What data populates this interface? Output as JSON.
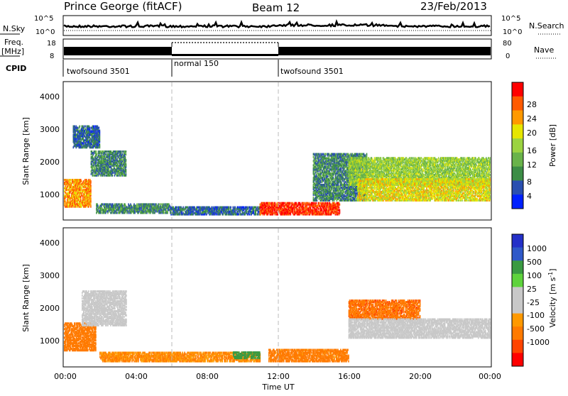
{
  "header": {
    "station": "Prince George (fitACF)",
    "beam": "Beam 12",
    "date": "23/Feb/2013"
  },
  "strips": {
    "nsky_label": "N.Sky",
    "nsky_ticks": [
      "10^5",
      "10^0"
    ],
    "nsearch_label": "N.Search",
    "nsearch_ticks": [
      "10^5",
      "10^0"
    ],
    "freq_label": "Freq.",
    "freq_unit": "[MHz]",
    "freq_ticks": [
      "18",
      "8"
    ],
    "nave_label": "Nave",
    "nave_ticks": [
      "80",
      "0"
    ],
    "cpid_label": "CPID",
    "cpid_segments": [
      {
        "name": "twofsound 3501",
        "start_hour": 0,
        "end_hour": 6
      },
      {
        "name": "normal 150",
        "start_hour": 6,
        "end_hour": 12
      },
      {
        "name": "twofsound 3501",
        "start_hour": 12,
        "end_hour": 24
      }
    ]
  },
  "power_panel": {
    "ylabel": "Slant Range [km]",
    "yticks": [
      "4000",
      "3000",
      "2000",
      "1000"
    ],
    "colorbar_label": "Power [dB]",
    "colorbar_ticks": [
      "28",
      "24",
      "20",
      "16",
      "12",
      "8",
      "4"
    ],
    "colors": [
      "#0020ff",
      "#2a4fb0",
      "#3c8d46",
      "#69b34a",
      "#9bd341",
      "#e6e600",
      "#ff9900",
      "#ff5a00",
      "#ff0000"
    ]
  },
  "velocity_panel": {
    "ylabel": "Slant Range [km]",
    "yticks": [
      "4000",
      "3000",
      "2000",
      "1000"
    ],
    "colorbar_label": "Velocity [m s",
    "colorbar_label_sup": "-1",
    "colorbar_label_end": "]",
    "colorbar_ticks": [
      "1000",
      "500",
      "100",
      "25",
      "-25",
      "-100",
      "-500",
      "-1000"
    ],
    "colors": [
      "#2430c8",
      "#2f59c9",
      "#3a9a42",
      "#5ed33c",
      "#c8c8c8",
      "#c8c8c8",
      "#ff9900",
      "#ff7a00",
      "#ff4400",
      "#ff0000"
    ]
  },
  "xaxis": {
    "label": "Time UT",
    "ticks": [
      "00:00",
      "04:00",
      "08:00",
      "12:00",
      "16:00",
      "20:00",
      "00:00"
    ]
  },
  "chart_data": [
    {
      "type": "heatmap",
      "title": "Prince George (fitACF) Beam 12 23/Feb/2013",
      "xlabel": "Time UT",
      "ylabel": "Slant Range [km]",
      "xlim": [
        0,
        24
      ],
      "ylim": [
        200,
        4600
      ],
      "colorbar": {
        "label": "Power [dB]",
        "range": [
          0,
          30
        ],
        "ticks": [
          4,
          8,
          12,
          16,
          20,
          24,
          28
        ]
      },
      "regions": [
        {
          "t0": 0.0,
          "t1": 1.5,
          "r0": 600,
          "r1": 1500,
          "value": 22
        },
        {
          "t0": 1.5,
          "t1": 3.5,
          "r0": 1600,
          "r1": 2400,
          "value": 8
        },
        {
          "t0": 0.5,
          "t1": 2.0,
          "r0": 2500,
          "r1": 3200,
          "value": 6
        },
        {
          "t0": 1.8,
          "t1": 6.0,
          "r0": 400,
          "r1": 700,
          "value": 8
        },
        {
          "t0": 6.0,
          "t1": 11.0,
          "r0": 350,
          "r1": 600,
          "value": 6
        },
        {
          "t0": 11.0,
          "t1": 15.5,
          "r0": 350,
          "r1": 750,
          "value": 27
        },
        {
          "t0": 14.0,
          "t1": 17.0,
          "r0": 800,
          "r1": 2300,
          "value": 8
        },
        {
          "t0": 16.0,
          "t1": 24.0,
          "r0": 1300,
          "r1": 2200,
          "value": 14
        },
        {
          "t0": 16.5,
          "t1": 24.0,
          "r0": 800,
          "r1": 1500,
          "value": 18
        }
      ]
    },
    {
      "type": "heatmap",
      "title": "",
      "xlabel": "Time UT",
      "ylabel": "Slant Range [km]",
      "xlim": [
        0,
        24
      ],
      "ylim": [
        200,
        4600
      ],
      "colorbar": {
        "label": "Velocity [m s-1]",
        "ticks": [
          1000,
          500,
          100,
          25,
          -25,
          -100,
          -500,
          -1000
        ]
      },
      "regions": [
        {
          "t0": 0.0,
          "t1": 1.8,
          "r0": 700,
          "r1": 1600,
          "value": -300
        },
        {
          "t0": 1.0,
          "t1": 3.5,
          "r0": 1500,
          "r1": 2600,
          "value": 0
        },
        {
          "t0": 2.0,
          "t1": 11.0,
          "r0": 350,
          "r1": 650,
          "value": -100
        },
        {
          "t0": 11.5,
          "t1": 16.0,
          "r0": 350,
          "r1": 750,
          "value": -150
        },
        {
          "t0": 16.0,
          "t1": 20.0,
          "r0": 1700,
          "r1": 2300,
          "value": -400
        },
        {
          "t0": 16.0,
          "t1": 24.0,
          "r0": 1100,
          "r1": 1700,
          "value": 0
        },
        {
          "t0": 9.5,
          "t1": 11.0,
          "r0": 450,
          "r1": 650,
          "value": 150
        }
      ]
    }
  ]
}
